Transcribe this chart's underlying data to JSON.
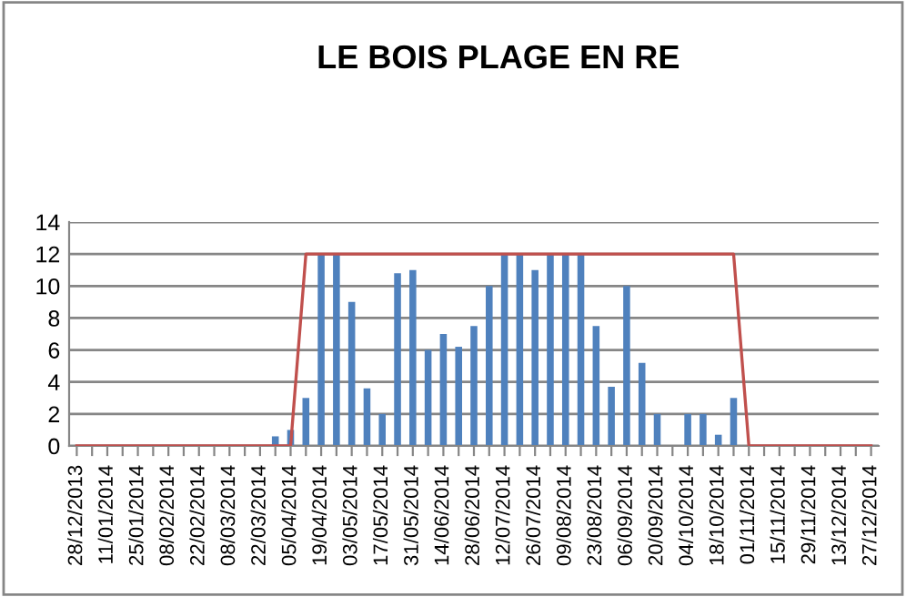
{
  "chart_data": {
    "type": "bar",
    "title": "LE BOIS PLAGE EN RE",
    "categories": [
      "28/12/2013",
      null,
      "11/01/2014",
      null,
      "25/01/2014",
      null,
      "08/02/2014",
      null,
      "22/02/2014",
      null,
      "08/03/2014",
      null,
      "22/03/2014",
      null,
      "05/04/2014",
      null,
      "19/04/2014",
      null,
      "03/05/2014",
      null,
      "17/05/2014",
      null,
      "31/05/2014",
      null,
      "14/06/2014",
      null,
      "28/06/2014",
      null,
      "12/07/2014",
      null,
      "26/07/2014",
      null,
      "09/08/2014",
      null,
      "23/08/2014",
      null,
      "06/09/2014",
      null,
      "20/09/2014",
      null,
      "04/10/2014",
      null,
      "18/10/2014",
      null,
      "01/11/2014",
      null,
      "15/11/2014",
      null,
      "29/11/2014",
      null,
      "13/12/2014",
      null,
      "27/12/2014"
    ],
    "series": [
      {
        "color": "#4f81bd",
        "values": [
          0,
          0,
          0,
          0,
          0,
          0,
          0,
          0,
          0,
          0,
          0,
          0,
          0,
          0.6,
          1,
          3,
          12,
          12,
          9,
          3.6,
          2,
          10.8,
          11,
          6,
          7,
          6.2,
          7.5,
          10,
          12,
          12,
          11,
          12,
          12,
          12,
          7.5,
          3.7,
          10,
          5.2,
          2,
          0,
          2,
          2,
          0.7,
          3,
          0,
          0,
          0,
          0,
          0,
          0,
          0,
          0,
          0
        ]
      },
      {
        "type": "line",
        "color": "#c0504d",
        "values": [
          0,
          0,
          0,
          0,
          0,
          0,
          0,
          0,
          0,
          0,
          0,
          0,
          0,
          0,
          0,
          12,
          12,
          12,
          12,
          12,
          12,
          12,
          12,
          12,
          12,
          12,
          12,
          12,
          12,
          12,
          12,
          12,
          12,
          12,
          12,
          12,
          12,
          12,
          12,
          12,
          12,
          12,
          12,
          12,
          0,
          0,
          0,
          0,
          0,
          0,
          0,
          0,
          0
        ]
      }
    ],
    "ylim": [
      0,
      14
    ],
    "yticks": [
      0,
      2,
      4,
      6,
      8,
      10,
      12,
      14
    ],
    "grid": "y",
    "legend": false
  }
}
